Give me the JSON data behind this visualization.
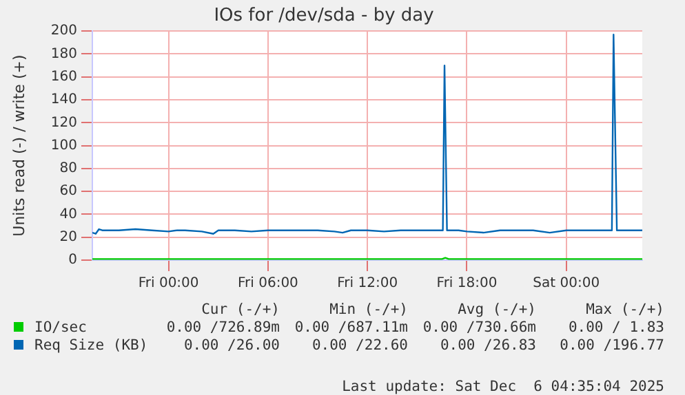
{
  "chart_data": {
    "type": "line",
    "title": "IOs for /dev/sda - by day",
    "ylabel": "Units read (-) / write (+)",
    "xlim": [
      "2025-12-04T19:24",
      "2025-12-06T04:35"
    ],
    "xticks": [
      {
        "value": "2025-12-05T00:00",
        "label": "Fri 00:00"
      },
      {
        "value": "2025-12-05T06:00",
        "label": "Fri 06:00"
      },
      {
        "value": "2025-12-05T12:00",
        "label": "Fri 12:00"
      },
      {
        "value": "2025-12-05T18:00",
        "label": "Fri 18:00"
      },
      {
        "value": "2025-12-06T00:00",
        "label": "Sat 00:00"
      }
    ],
    "ylim": [
      0,
      200
    ],
    "yticks": [
      0,
      20,
      40,
      60,
      80,
      100,
      120,
      140,
      160,
      180,
      200
    ],
    "grid": true,
    "legend": "bottom",
    "marker": "none",
    "series": [
      {
        "name": "IO/sec",
        "color": "#00cc00",
        "x": [
          "2025-12-04T19:24",
          "2025-12-05T00:00",
          "2025-12-05T06:00",
          "2025-12-05T12:00",
          "2025-12-05T16:30",
          "2025-12-05T16:42",
          "2025-12-05T16:54",
          "2025-12-06T00:00",
          "2025-12-06T04:35"
        ],
        "values": [
          1,
          1,
          1,
          1,
          1,
          2,
          1,
          1,
          1
        ]
      },
      {
        "name": "Req Size (KB)",
        "color": "#0066b3",
        "x": [
          "2025-12-04T19:24",
          "2025-12-04T19:36",
          "2025-12-04T19:48",
          "2025-12-04T20:00",
          "2025-12-04T21:00",
          "2025-12-04T22:00",
          "2025-12-04T23:00",
          "2025-12-05T00:00",
          "2025-12-05T00:30",
          "2025-12-05T01:00",
          "2025-12-05T02:00",
          "2025-12-05T02:42",
          "2025-12-05T03:00",
          "2025-12-05T04:00",
          "2025-12-05T05:00",
          "2025-12-05T06:00",
          "2025-12-05T07:00",
          "2025-12-05T08:00",
          "2025-12-05T09:00",
          "2025-12-05T10:00",
          "2025-12-05T10:30",
          "2025-12-05T11:00",
          "2025-12-05T12:00",
          "2025-12-05T13:00",
          "2025-12-05T14:00",
          "2025-12-05T15:00",
          "2025-12-05T16:00",
          "2025-12-05T16:33",
          "2025-12-05T16:39",
          "2025-12-05T16:48",
          "2025-12-05T17:30",
          "2025-12-05T18:00",
          "2025-12-05T19:00",
          "2025-12-05T20:00",
          "2025-12-05T21:00",
          "2025-12-05T22:00",
          "2025-12-05T23:00",
          "2025-12-06T00:00",
          "2025-12-06T01:00",
          "2025-12-06T02:00",
          "2025-12-06T02:45",
          "2025-12-06T02:51",
          "2025-12-06T03:03",
          "2025-12-06T04:00",
          "2025-12-06T04:35"
        ],
        "values": [
          24,
          23,
          27,
          26,
          26,
          27,
          26,
          25,
          26,
          26,
          25,
          23,
          26,
          26,
          25,
          26,
          26,
          26,
          26,
          25,
          24,
          26,
          26,
          25,
          26,
          26,
          26,
          26,
          170,
          26,
          26,
          25,
          24,
          26,
          26,
          26,
          24,
          26,
          26,
          26,
          26,
          197,
          26,
          26,
          26
        ]
      }
    ],
    "annotations": [
      "Cur (-/+)",
      "Min (-/+)",
      "Avg (-/+)",
      "Max (-/+)",
      "0.00 /726.89m",
      "0.00 /687.11m",
      "0.00 /730.66m",
      "0.00 / 1.83",
      "0.00 /26.00",
      "0.00 /22.60",
      "0.00 /26.83",
      "0.00 /196.77",
      "Last update: Sat Dec  6 04:35:04 2025"
    ]
  }
}
